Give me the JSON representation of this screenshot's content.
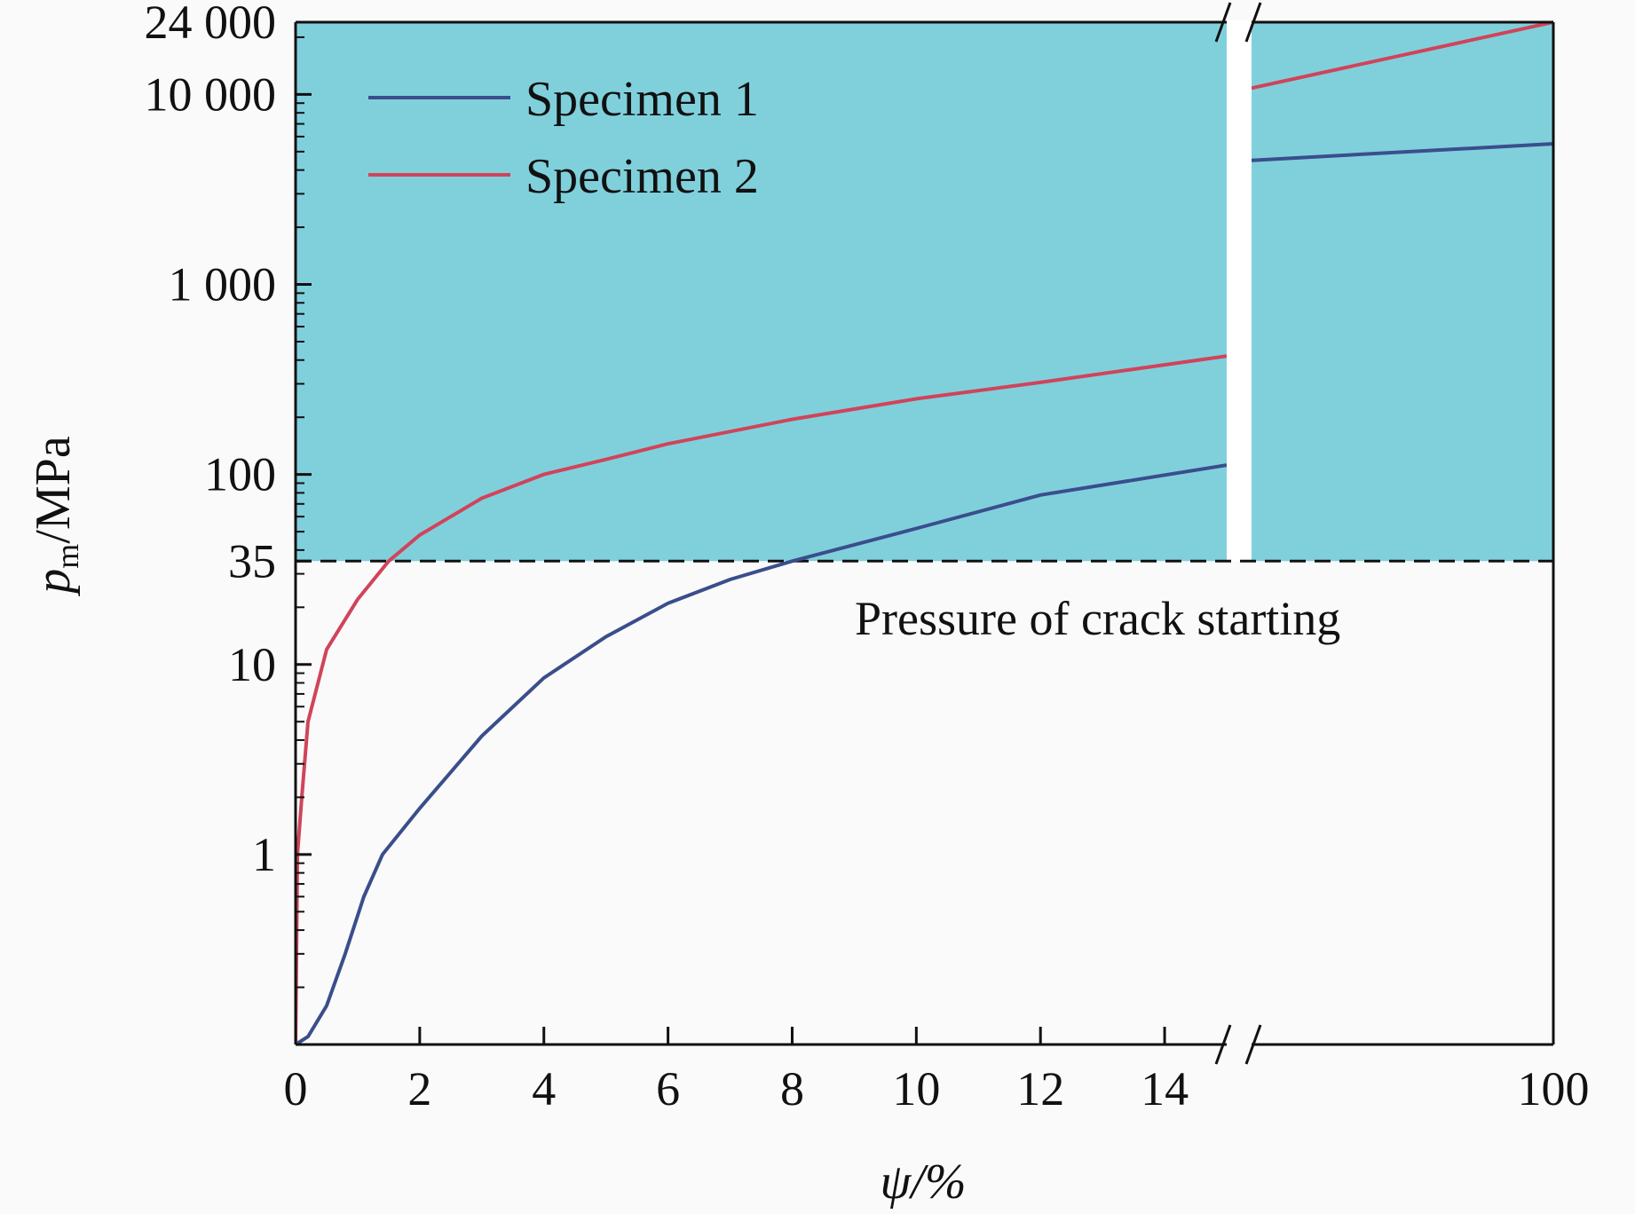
{
  "chart_data": {
    "type": "line",
    "title": "",
    "xlabel": "ψ/%",
    "ylabel": "pm/MPa",
    "ylabel_parts": {
      "main": "p",
      "sub": "m",
      "rest": "/MPa"
    },
    "y_scale": "log",
    "ylim": [
      0.1,
      24000
    ],
    "x_axis_break": {
      "left_segment": [
        0,
        15
      ],
      "right_segment_end": 100
    },
    "x_ticks": [
      "0",
      "2",
      "4",
      "6",
      "8",
      "10",
      "12",
      "14",
      "100"
    ],
    "x_tick_values": [
      0,
      2,
      4,
      6,
      8,
      10,
      12,
      14,
      100
    ],
    "y_ticks": [
      "1",
      "10",
      "35",
      "100",
      "1 000",
      "10 000",
      "24 000"
    ],
    "y_tick_values": [
      1,
      10,
      35,
      100,
      1000,
      10000,
      24000
    ],
    "threshold": {
      "value": 35,
      "label": "Pressure of crack starting"
    },
    "region_above_threshold_color": "#80d0dc",
    "legend": {
      "placement": "top-left"
    },
    "series": [
      {
        "name": "Specimen 1",
        "color": "#3a4e8c",
        "points": [
          [
            0,
            0.1
          ],
          [
            0.2,
            0.11
          ],
          [
            0.5,
            0.16
          ],
          [
            0.8,
            0.3
          ],
          [
            1.1,
            0.6
          ],
          [
            1.4,
            1.0
          ],
          [
            2,
            1.75
          ],
          [
            3,
            4.2
          ],
          [
            4,
            8.5
          ],
          [
            5,
            14
          ],
          [
            6,
            21
          ],
          [
            7,
            28
          ],
          [
            8,
            35
          ],
          [
            10,
            52
          ],
          [
            12,
            78
          ],
          [
            15,
            112
          ],
          [
            16,
            4500
          ],
          [
            100,
            5500
          ]
        ]
      },
      {
        "name": "Specimen 2",
        "color": "#d0445a",
        "points": [
          [
            0,
            0.1
          ],
          [
            0.03,
            1.0
          ],
          [
            0.1,
            2.0
          ],
          [
            0.2,
            5
          ],
          [
            0.5,
            12
          ],
          [
            1,
            22
          ],
          [
            1.5,
            35
          ],
          [
            2,
            48
          ],
          [
            3,
            75
          ],
          [
            4,
            100
          ],
          [
            5,
            120
          ],
          [
            6,
            145
          ],
          [
            8,
            195
          ],
          [
            10,
            250
          ],
          [
            12,
            305
          ],
          [
            15,
            420
          ],
          [
            16,
            10800
          ],
          [
            100,
            24000
          ]
        ]
      }
    ]
  }
}
